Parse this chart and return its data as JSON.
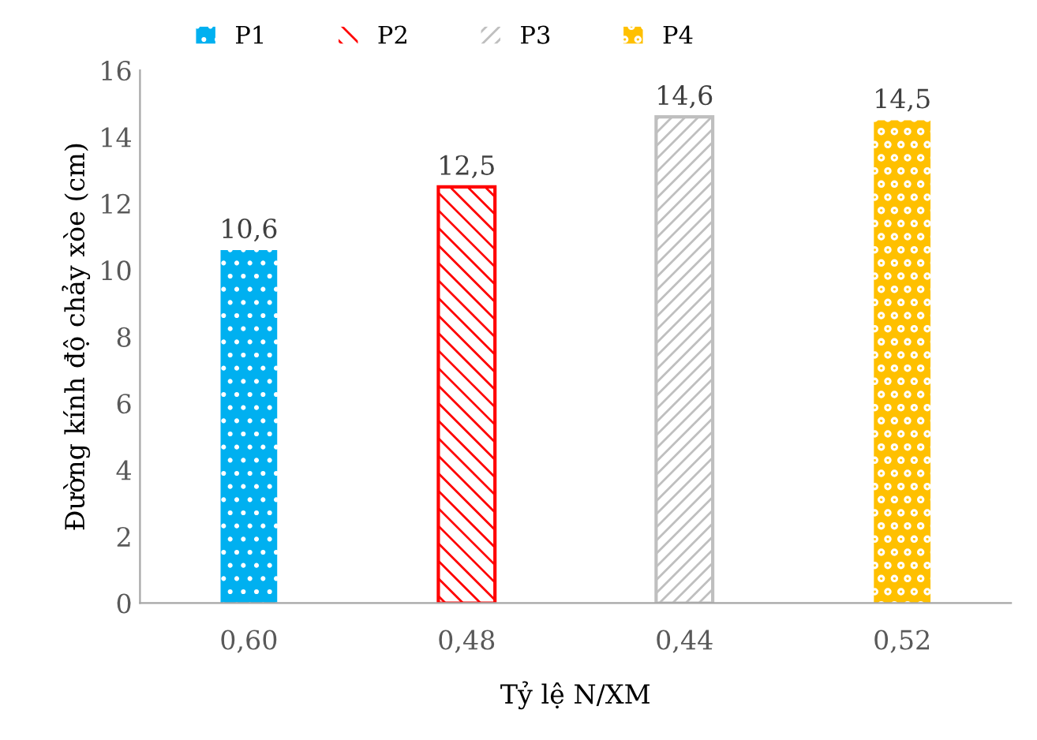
{
  "chart_data": {
    "type": "bar",
    "xlabel": "Tỷ lệ N/XM",
    "ylabel": "Đường kính độ chảy xòe (cm)",
    "categories": [
      "0,60",
      "0,48",
      "0,44",
      "0,52"
    ],
    "series": [
      {
        "name": "P1",
        "color": "#00b0f0",
        "values": [
          10.6,
          null,
          null,
          null
        ],
        "value_labels": [
          "10,6",
          null,
          null,
          null
        ]
      },
      {
        "name": "P2",
        "color": "#ff0000",
        "values": [
          null,
          12.5,
          null,
          null
        ],
        "value_labels": [
          null,
          "12,5",
          null,
          null
        ]
      },
      {
        "name": "P3",
        "color": "#bfbfbf",
        "values": [
          null,
          null,
          14.6,
          null
        ],
        "value_labels": [
          null,
          null,
          "14,6",
          null
        ]
      },
      {
        "name": "P4",
        "color": "#ffc000",
        "values": [
          null,
          null,
          null,
          14.5
        ],
        "value_labels": [
          null,
          null,
          null,
          "14,5"
        ]
      }
    ],
    "ylim": [
      0,
      16
    ],
    "yticks": [
      0,
      2,
      4,
      6,
      8,
      10,
      12,
      14,
      16
    ],
    "grid": false,
    "legend": "top"
  }
}
